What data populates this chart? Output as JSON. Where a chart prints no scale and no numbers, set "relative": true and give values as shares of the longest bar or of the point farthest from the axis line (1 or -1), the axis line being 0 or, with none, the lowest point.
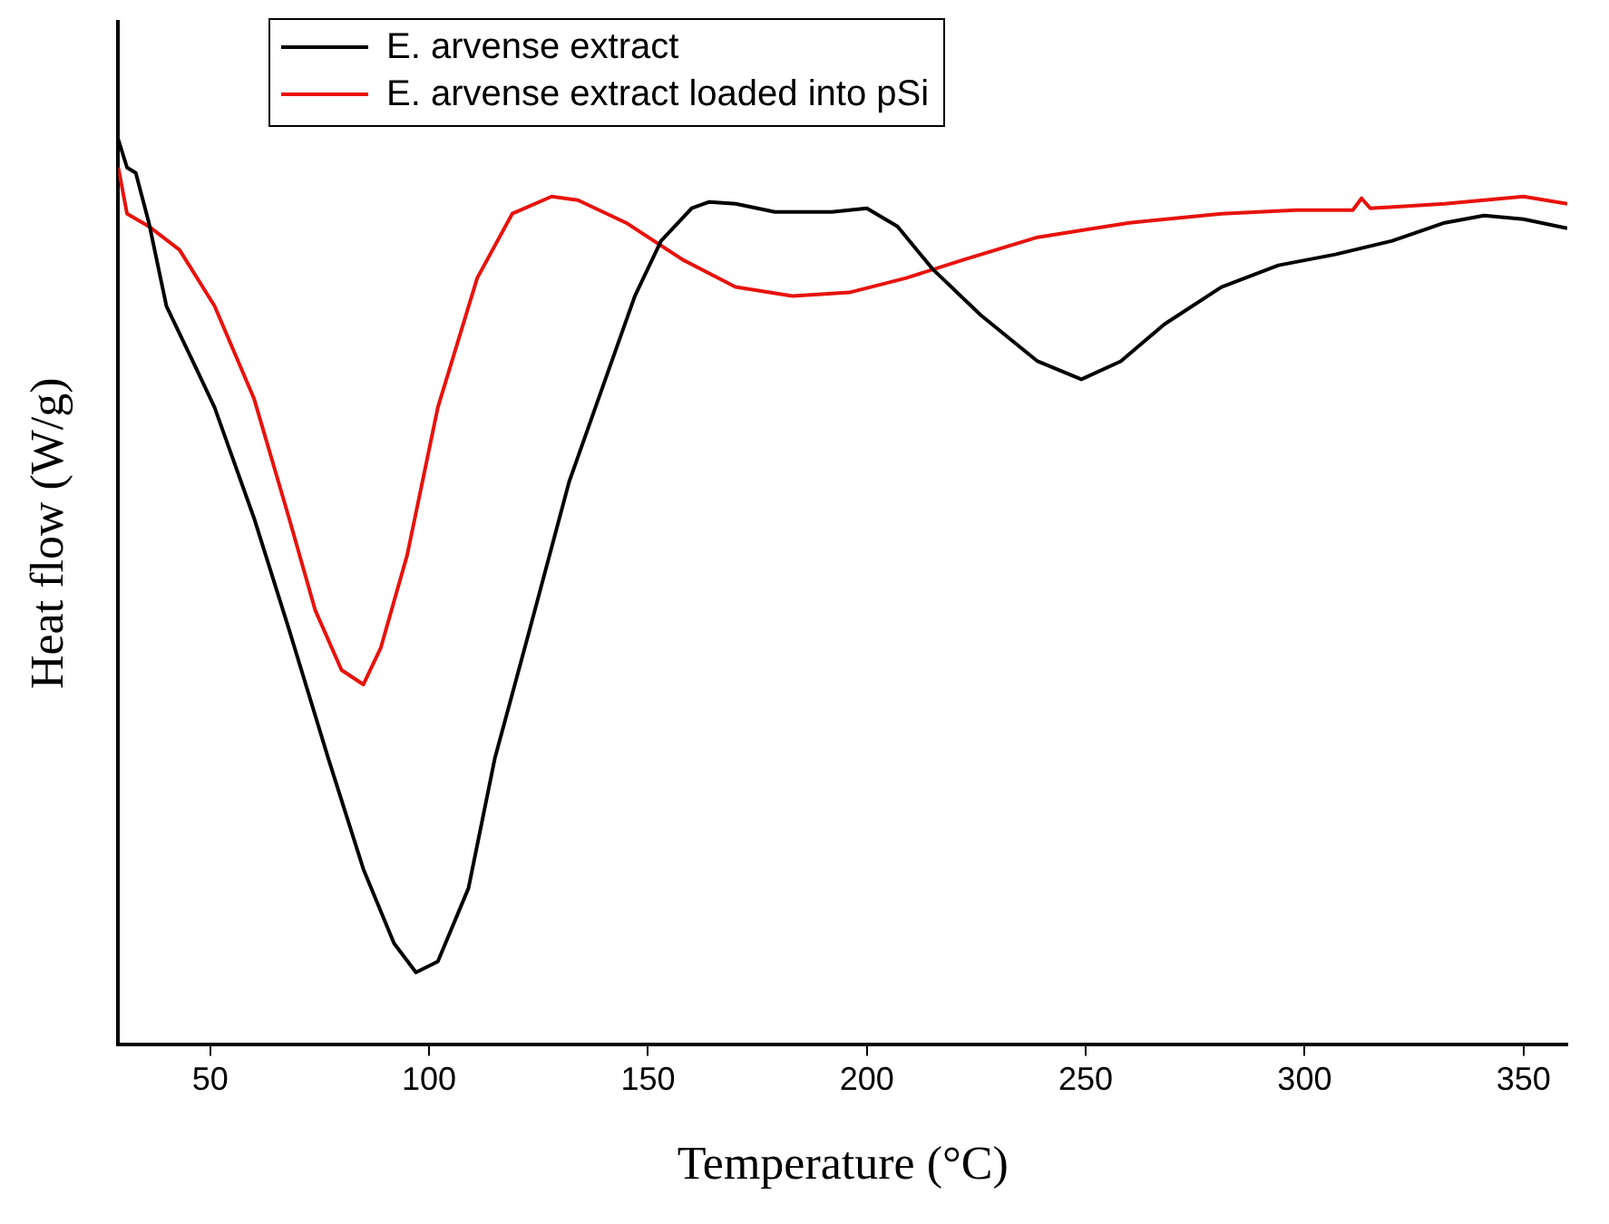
{
  "chart_data": {
    "type": "line",
    "relative": true,
    "xlabel": "Temperature (°C)",
    "ylabel": "Heat flow (W/g)",
    "xlim": [
      29,
      360
    ],
    "xticks": [
      50,
      100,
      150,
      200,
      250,
      300,
      350
    ],
    "legend": "top left",
    "grid": false,
    "marker": "none",
    "line_style": "solid",
    "series": [
      {
        "name": "E. arvense extract",
        "color": "#000000",
        "x": [
          29,
          31,
          33,
          36,
          40,
          47,
          51,
          60,
          68,
          77,
          85,
          92,
          97,
          102,
          109,
          115,
          123,
          132,
          141,
          147,
          153,
          160,
          164,
          170,
          179,
          192,
          200,
          207,
          215,
          226,
          239,
          249,
          258,
          268,
          281,
          294,
          307,
          320,
          332,
          341,
          350,
          360
        ],
        "values": [
          1.0,
          0.969,
          0.963,
          0.908,
          0.816,
          0.745,
          0.704,
          0.582,
          0.459,
          0.316,
          0.194,
          0.112,
          0.08,
          0.092,
          0.173,
          0.316,
          0.459,
          0.622,
          0.745,
          0.827,
          0.888,
          0.924,
          0.931,
          0.929,
          0.92,
          0.92,
          0.924,
          0.904,
          0.857,
          0.806,
          0.755,
          0.735,
          0.755,
          0.796,
          0.837,
          0.861,
          0.873,
          0.888,
          0.908,
          0.916,
          0.912,
          0.902
        ]
      },
      {
        "name": "E. arvense extract loaded into pSi",
        "color": "#e8120c",
        "x": [
          29,
          31,
          36,
          43,
          51,
          60,
          68,
          74,
          80,
          85,
          89,
          95,
          102,
          111,
          119,
          128,
          134,
          145,
          158,
          170,
          183,
          196,
          209,
          222,
          239,
          260,
          281,
          298,
          311,
          313,
          315,
          332,
          350,
          360
        ],
        "values": [
          0.969,
          0.918,
          0.904,
          0.878,
          0.816,
          0.714,
          0.582,
          0.48,
          0.414,
          0.398,
          0.439,
          0.541,
          0.704,
          0.847,
          0.918,
          0.937,
          0.933,
          0.908,
          0.867,
          0.837,
          0.827,
          0.831,
          0.847,
          0.867,
          0.892,
          0.908,
          0.918,
          0.922,
          0.922,
          0.935,
          0.924,
          0.929,
          0.937,
          0.929
        ]
      }
    ]
  }
}
